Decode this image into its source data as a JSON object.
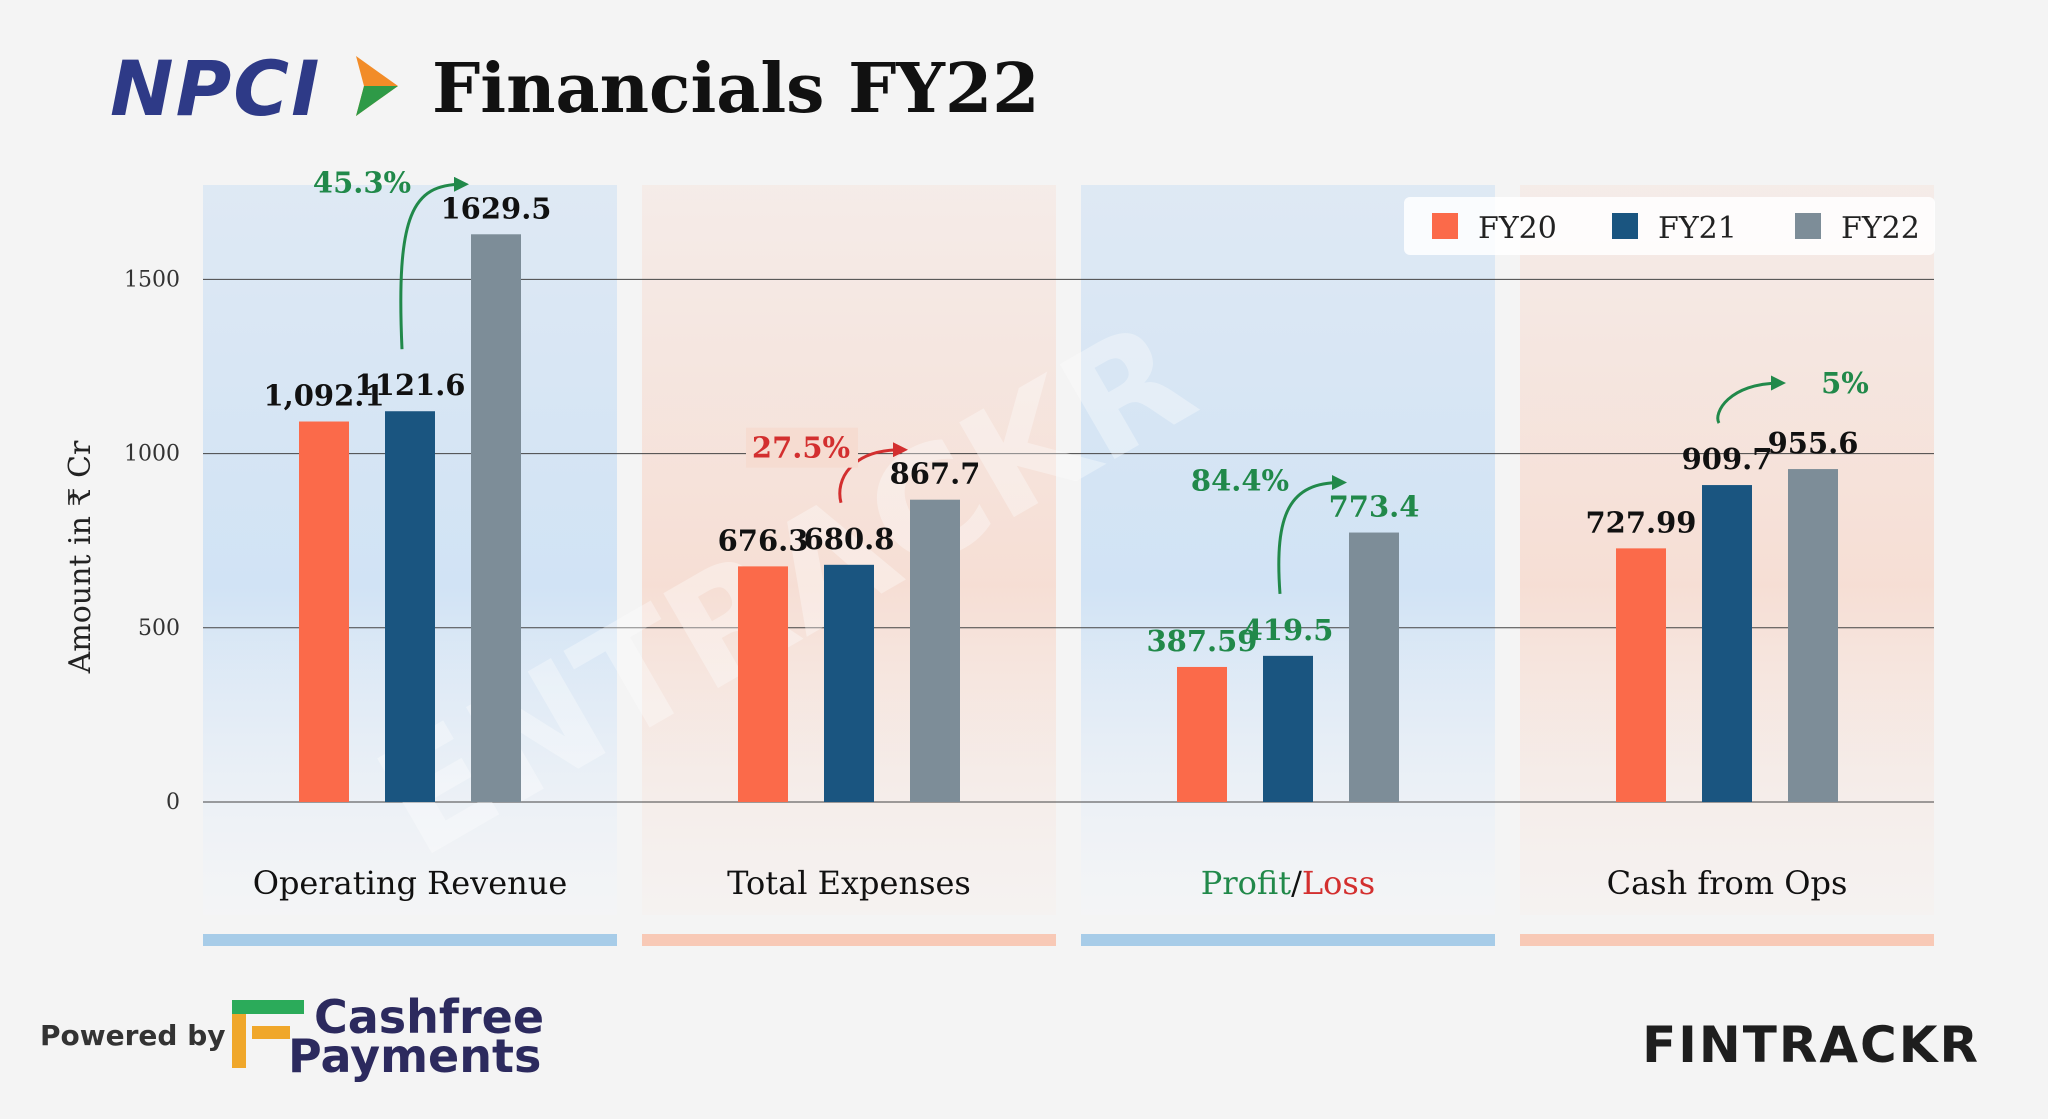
{
  "header": {
    "logo_text": "NPCI",
    "title": "Financials FY22"
  },
  "footer": {
    "powered_by": "Powered by",
    "partner_line1": "Cashfree",
    "partner_line2": "Payments",
    "brand": "FINTRACKR"
  },
  "watermark": "ENTRACKR",
  "colors": {
    "FY20": "#fb6a4a",
    "FY21": "#1a5580",
    "FY22": "#7d8d98",
    "growth_positive": "#21894a",
    "growth_negative": "#d32f2f",
    "panel_blue": "#a7cce8",
    "panel_orange": "#f8c9b6"
  },
  "chart_data": {
    "type": "bar",
    "ylabel": "Amount in ₹ Cr",
    "ylim": [
      0,
      1750
    ],
    "yticks": [
      0,
      500,
      1000,
      1500
    ],
    "ytick_labels": [
      "0",
      "500",
      "1000",
      "1500"
    ],
    "grid": true,
    "legend": {
      "position": "top-right",
      "entries": [
        "FY20",
        "FY21",
        "FY22"
      ]
    },
    "categories": [
      "Operating Revenue",
      "Total Expenses",
      "Profit/Loss",
      "Cash from Ops"
    ],
    "category_label_parts": [
      [
        {
          "text": "Operating Revenue",
          "tone": "normal"
        }
      ],
      [
        {
          "text": "Total Expenses",
          "tone": "normal"
        }
      ],
      [
        {
          "text": "Profit",
          "tone": "positive"
        },
        {
          "text": "/",
          "tone": "normal"
        },
        {
          "text": "Loss",
          "tone": "negative"
        }
      ],
      [
        {
          "text": "Cash from Ops",
          "tone": "normal"
        }
      ]
    ],
    "series": [
      {
        "name": "FY20",
        "values": [
          1092.1,
          676.3,
          387.59,
          727.99
        ],
        "labels": [
          "1,092.1",
          "676.3",
          "387.59",
          "727.99"
        ]
      },
      {
        "name": "FY21",
        "values": [
          1121.6,
          680.8,
          419.5,
          909.7
        ],
        "labels": [
          "1121.6",
          "680.8",
          "419.5",
          "909.7"
        ]
      },
      {
        "name": "FY22",
        "values": [
          1629.5,
          867.7,
          773.4,
          955.6
        ],
        "labels": [
          "1629.5",
          "867.7",
          "773.4",
          "955.6"
        ]
      }
    ],
    "label_tones": [
      [
        "normal",
        "normal",
        "normal"
      ],
      [
        "normal",
        "normal",
        "normal"
      ],
      [
        "positive",
        "positive",
        "positive"
      ],
      [
        "normal",
        "normal",
        "normal"
      ]
    ],
    "growth_annotations": [
      {
        "category": "Operating Revenue",
        "label": "45.3%",
        "tone": "positive"
      },
      {
        "category": "Total Expenses",
        "label": "27.5%",
        "tone": "negative"
      },
      {
        "category": "Profit/Loss",
        "label": "84.4%",
        "tone": "positive"
      },
      {
        "category": "Cash from Ops",
        "label": "5%",
        "tone": "positive"
      }
    ]
  }
}
